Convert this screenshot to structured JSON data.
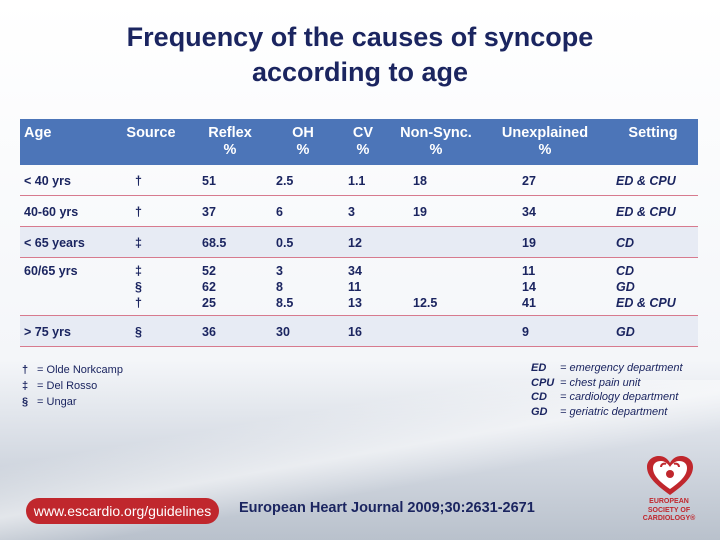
{
  "title": {
    "line1": "Frequency of the causes of syncope",
    "line2": "according to age"
  },
  "table": {
    "headers": {
      "age": "Age",
      "source": "Source",
      "reflex_1": "Reflex",
      "reflex_2": "%",
      "oh_1": "OH",
      "oh_2": "%",
      "cv_1": "CV",
      "cv_2": "%",
      "nonsync_1": "Non-Sync.",
      "nonsync_2": "%",
      "unexplained_1": "Unexplained",
      "unexplained_2": "%",
      "setting": "Setting"
    },
    "rows": [
      {
        "age": "< 40 yrs",
        "source": [
          "†"
        ],
        "reflex": [
          "51"
        ],
        "oh": [
          "2.5"
        ],
        "cv": [
          "1.1"
        ],
        "nonsync": [
          "18"
        ],
        "unexplained": [
          "27"
        ],
        "setting": [
          "ED & CPU"
        ]
      },
      {
        "age": "40-60 yrs",
        "source": [
          "†"
        ],
        "reflex": [
          "37"
        ],
        "oh": [
          "6"
        ],
        "cv": [
          "3"
        ],
        "nonsync": [
          "19"
        ],
        "unexplained": [
          "34"
        ],
        "setting": [
          "ED & CPU"
        ]
      },
      {
        "age": "< 65 years",
        "source": [
          "‡"
        ],
        "reflex": [
          "68.5"
        ],
        "oh": [
          "0.5"
        ],
        "cv": [
          "12"
        ],
        "nonsync": [
          ""
        ],
        "unexplained": [
          "19"
        ],
        "setting": [
          "CD"
        ]
      },
      {
        "age": "60/65 yrs",
        "source": [
          "‡",
          "§",
          "†"
        ],
        "reflex": [
          "52",
          "62",
          "25"
        ],
        "oh": [
          "3",
          "8",
          "8.5"
        ],
        "cv": [
          "34",
          "11",
          "13"
        ],
        "nonsync": [
          "",
          "",
          "12.5"
        ],
        "unexplained": [
          "11",
          "14",
          "41"
        ],
        "setting": [
          "CD",
          "GD",
          "ED & CPU"
        ]
      },
      {
        "age": "> 75 yrs",
        "source": [
          "§"
        ],
        "reflex": [
          "36"
        ],
        "oh": [
          "30"
        ],
        "cv": [
          "16"
        ],
        "nonsync": [
          ""
        ],
        "unexplained": [
          "9"
        ],
        "setting": [
          "GD"
        ]
      }
    ]
  },
  "legend_sources": [
    {
      "symbol": "†",
      "text": " = Olde Norkcamp"
    },
    {
      "symbol": "‡",
      "text": " = Del Rosso"
    },
    {
      "symbol": "§",
      "text": " = Ungar"
    }
  ],
  "legend_settings": [
    {
      "abbr": "ED",
      "text": "= emergency department"
    },
    {
      "abbr": "CPU",
      "text": "= chest pain unit"
    },
    {
      "abbr": "CD",
      "text": "= cardiology department"
    },
    {
      "abbr": "GD",
      "text": "= geriatric department"
    }
  ],
  "footer": {
    "url": "www.escardio.org/guidelines",
    "citation": "European Heart Journal 2009;30:2631-2671"
  },
  "logo": {
    "line1": "EUROPEAN",
    "line2": "SOCIETY OF",
    "line3": "CARDIOLOGY®",
    "color": "#c0272d"
  },
  "colors": {
    "header_bg": "#4c75b8",
    "row_alt": "#e7ebf4",
    "row_border": "#d77a8e",
    "text": "#1b2560"
  }
}
